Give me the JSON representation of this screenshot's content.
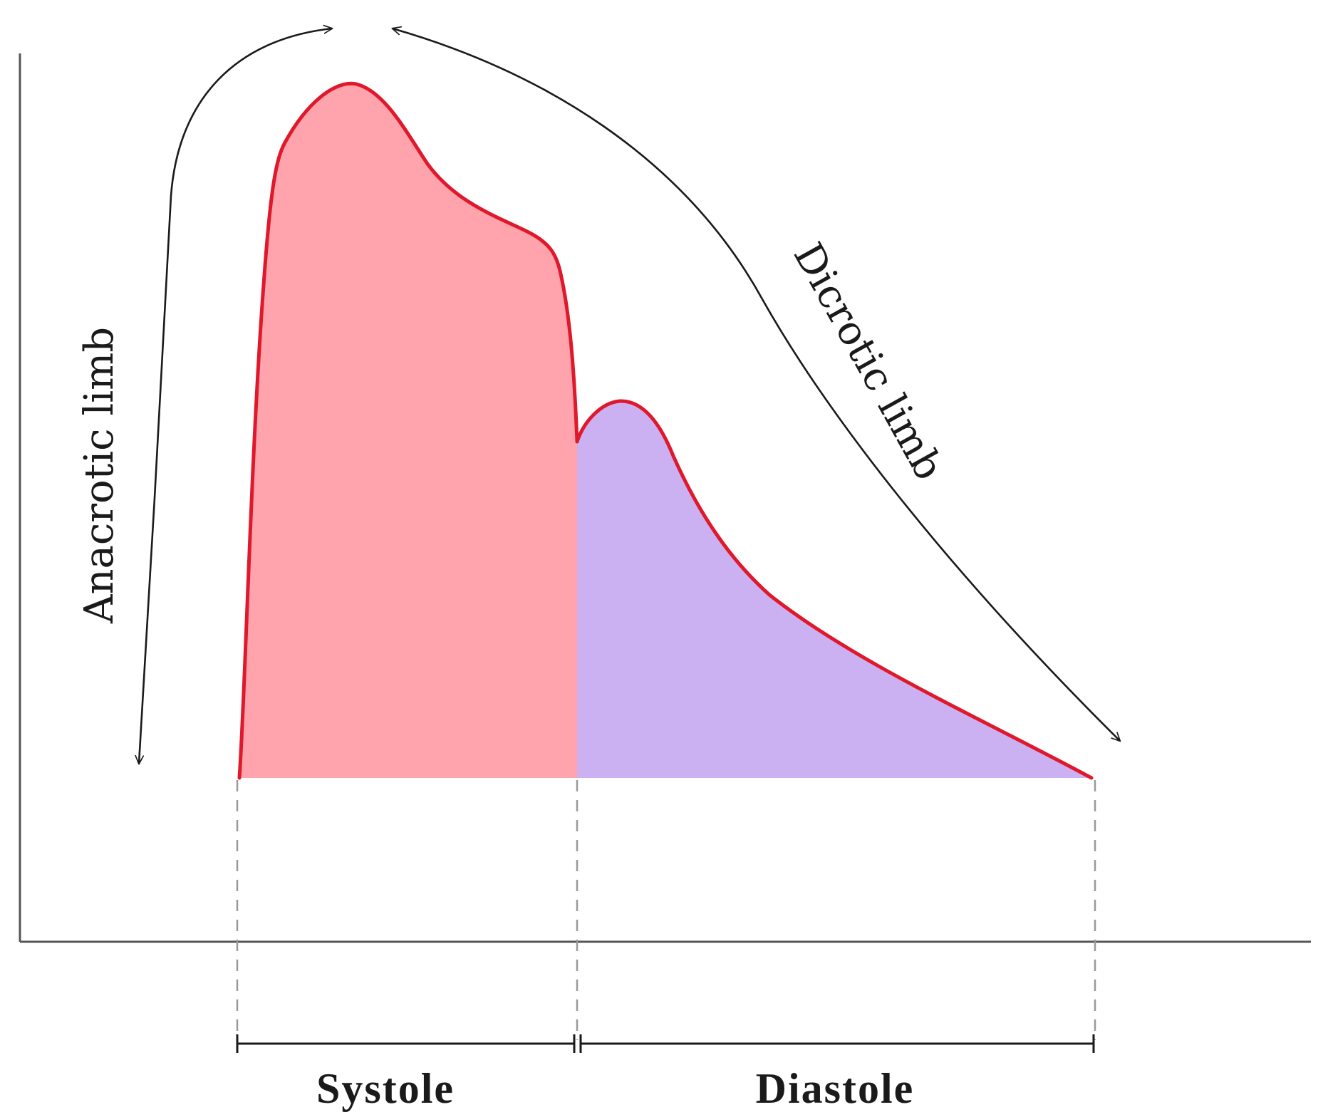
{
  "labels": {
    "anacrotic": "Anacrotic limb",
    "dicrotic": "Dicrotic limb",
    "systole": "Systole",
    "diastole": "Diastole"
  },
  "colors": {
    "waveform_stroke": "#e0182b",
    "systole_fill": "#ffa3ad",
    "diastole_fill": "#cbb1f2",
    "axis": "#555555",
    "annotation": "#1a1a1a",
    "guide_dash": "#999999"
  }
}
